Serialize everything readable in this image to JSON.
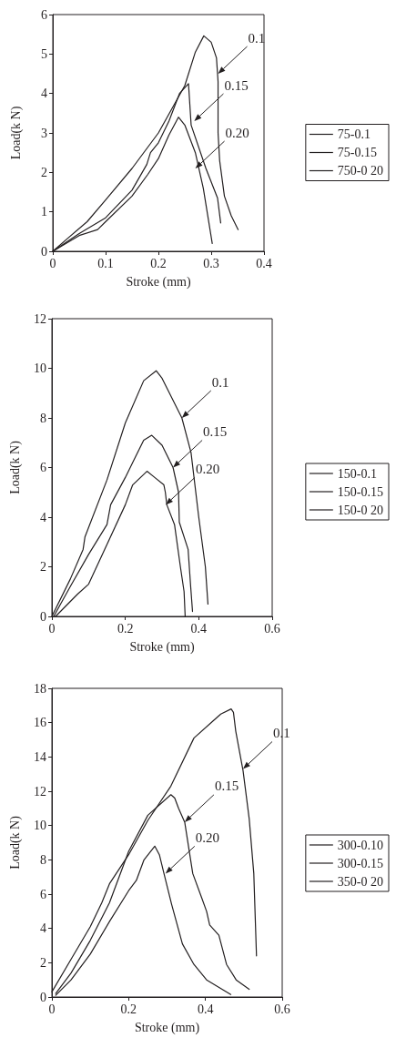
{
  "chart_data": [
    {
      "type": "line",
      "xlabel": "Stroke (mm)",
      "ylabel": "Load(k N)",
      "xlim": [
        0,
        0.4
      ],
      "xticks": [
        0,
        0.1,
        0.2,
        0.3,
        0.4
      ],
      "ylim": [
        0,
        6
      ],
      "yticks": [
        0,
        1,
        2,
        3,
        4,
        5,
        6
      ],
      "grid": false,
      "legend": "right",
      "marker": "none",
      "line_style": "solid",
      "series": [
        {
          "name": "75-0.1",
          "color": "#231f20",
          "x": [
            0,
            0.03,
            0.065,
            0.1,
            0.15,
            0.2,
            0.25,
            0.27,
            0.286,
            0.3,
            0.31,
            0.313,
            0.313,
            0.316,
            0.325,
            0.338,
            0.351
          ],
          "values": [
            0,
            0.35,
            0.75,
            1.3,
            2.1,
            3.0,
            4.2,
            5.05,
            5.46,
            5.3,
            4.9,
            4.3,
            3.0,
            2.3,
            1.4,
            0.9,
            0.55
          ]
        },
        {
          "name": "75-0.15",
          "color": "#231f20",
          "x": [
            0,
            0.05,
            0.1,
            0.15,
            0.178,
            0.185,
            0.2,
            0.22,
            0.24,
            0.257,
            0.262,
            0.29,
            0.312,
            0.318
          ],
          "values": [
            0,
            0.45,
            0.85,
            1.55,
            2.2,
            2.5,
            2.75,
            3.3,
            4.0,
            4.25,
            3.2,
            2.1,
            1.35,
            0.72
          ]
        },
        {
          "name": "750-0 20",
          "color": "#231f20",
          "x": [
            0,
            0.05,
            0.085,
            0.1,
            0.15,
            0.18,
            0.2,
            0.22,
            0.238,
            0.25,
            0.27,
            0.285,
            0.302
          ],
          "values": [
            0,
            0.4,
            0.55,
            0.75,
            1.4,
            1.95,
            2.35,
            2.95,
            3.4,
            3.2,
            2.5,
            1.6,
            0.2
          ]
        }
      ],
      "annotations": [
        {
          "text": "0.1",
          "x": 0.313,
          "y": 4.5
        },
        {
          "text": "0.15",
          "x": 0.268,
          "y": 3.3
        },
        {
          "text": "0.20",
          "x": 0.27,
          "y": 2.1
        }
      ]
    },
    {
      "type": "line",
      "xlabel": "Stroke (mm)",
      "ylabel": "Load(k N)",
      "xlim": [
        0,
        0.6
      ],
      "xticks": [
        0,
        0.2,
        0.4,
        0.6
      ],
      "ylim": [
        0,
        12
      ],
      "yticks": [
        0,
        2,
        4,
        6,
        8,
        10,
        12
      ],
      "grid": false,
      "legend": "right",
      "marker": "none",
      "line_style": "solid",
      "series": [
        {
          "name": "150-0.1",
          "color": "#231f20",
          "x": [
            0,
            0.05,
            0.085,
            0.09,
            0.15,
            0.2,
            0.25,
            0.284,
            0.3,
            0.354,
            0.379,
            0.4,
            0.418,
            0.425
          ],
          "values": [
            0,
            1.5,
            2.7,
            3.2,
            5.5,
            7.8,
            9.5,
            9.9,
            9.6,
            8.0,
            6.6,
            4.0,
            2.0,
            0.5
          ]
        },
        {
          "name": "150-0.15",
          "color": "#231f20",
          "x": [
            0.005,
            0.05,
            0.1,
            0.15,
            0.16,
            0.2,
            0.22,
            0.25,
            0.272,
            0.3,
            0.33,
            0.345,
            0.347,
            0.371,
            0.378,
            0.383
          ],
          "values": [
            0,
            1.2,
            2.5,
            3.7,
            4.5,
            5.6,
            6.2,
            7.1,
            7.3,
            6.9,
            6.0,
            5.0,
            3.8,
            2.7,
            1.2,
            0.2
          ]
        },
        {
          "name": "150-0 20",
          "color": "#231f20",
          "x": [
            0.01,
            0.07,
            0.1,
            0.15,
            0.2,
            0.22,
            0.259,
            0.28,
            0.305,
            0.309,
            0.313,
            0.334,
            0.35,
            0.36,
            0.363
          ],
          "values": [
            0,
            0.9,
            1.3,
            2.9,
            4.5,
            5.3,
            5.85,
            5.6,
            5.3,
            5.0,
            4.5,
            3.7,
            2.0,
            1.0,
            0
          ]
        }
      ],
      "annotations": [
        {
          "text": "0.1",
          "x": 0.354,
          "y": 8.0
        },
        {
          "text": "0.15",
          "x": 0.33,
          "y": 6.0
        },
        {
          "text": "0.20",
          "x": 0.31,
          "y": 4.5
        }
      ]
    },
    {
      "type": "line",
      "xlabel": "Stroke (mm)",
      "ylabel": "Load(k N)",
      "xlim": [
        0,
        0.6
      ],
      "xticks": [
        0,
        0.2,
        0.4,
        0.6
      ],
      "ylim": [
        0,
        18
      ],
      "yticks": [
        0,
        2,
        4,
        6,
        8,
        10,
        12,
        14,
        16,
        18
      ],
      "grid": false,
      "legend": "right",
      "marker": "none",
      "line_style": "solid",
      "series": [
        {
          "name": "300-0.10",
          "color": "#231f20",
          "x": [
            0,
            0.05,
            0.1,
            0.13,
            0.15,
            0.2,
            0.25,
            0.31,
            0.37,
            0.42,
            0.44,
            0.467,
            0.473,
            0.479,
            0.498,
            0.514,
            0.526,
            0.533
          ],
          "values": [
            0.3,
            2.2,
            4.1,
            5.5,
            6.6,
            8.3,
            10.3,
            12.3,
            15.1,
            16.1,
            16.5,
            16.8,
            16.6,
            15.5,
            13.2,
            10.4,
            7.2,
            2.4
          ]
        },
        {
          "name": "300-0.15",
          "color": "#231f20",
          "x": [
            0.01,
            0.05,
            0.1,
            0.15,
            0.2,
            0.25,
            0.31,
            0.32,
            0.33,
            0.346,
            0.367,
            0.39,
            0.403,
            0.411,
            0.435,
            0.455,
            0.48,
            0.514
          ],
          "values": [
            0.2,
            1.4,
            3.3,
            5.5,
            8.5,
            10.6,
            11.8,
            11.6,
            11.0,
            10.2,
            7.2,
            5.8,
            5.0,
            4.2,
            3.6,
            1.9,
            1.0,
            0.45
          ]
        },
        {
          "name": "350-0 20",
          "color": "#231f20",
          "x": [
            0.01,
            0.05,
            0.1,
            0.15,
            0.2,
            0.22,
            0.24,
            0.268,
            0.28,
            0.292,
            0.312,
            0.34,
            0.37,
            0.403,
            0.466
          ],
          "values": [
            0.1,
            1.0,
            2.5,
            4.4,
            6.2,
            6.8,
            8.0,
            8.8,
            8.3,
            7.2,
            5.4,
            3.1,
            1.9,
            1.0,
            0.15
          ]
        }
      ],
      "annotations": [
        {
          "text": "0.1",
          "x": 0.498,
          "y": 13.3
        },
        {
          "text": "0.15",
          "x": 0.346,
          "y": 10.2
        },
        {
          "text": "0.20",
          "x": 0.296,
          "y": 7.2
        }
      ]
    }
  ]
}
